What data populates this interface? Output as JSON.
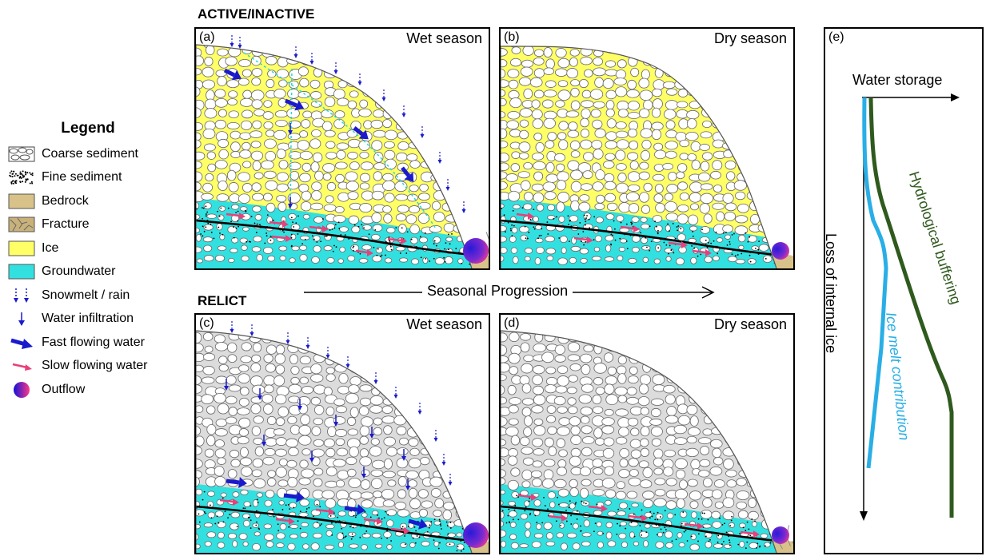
{
  "sections": {
    "active_title": "ACTIVE/INACTIVE",
    "relict_title": "RELICT"
  },
  "panels": [
    {
      "tag": "(a)",
      "season": "Wet season"
    },
    {
      "tag": "(b)",
      "season": "Dry season"
    },
    {
      "tag": "(c)",
      "season": "Wet season"
    },
    {
      "tag": "(d)",
      "season": "Dry season"
    }
  ],
  "progression_label": "Seasonal Progression",
  "legend": {
    "title": "Legend",
    "items": [
      {
        "label": "Coarse sediment",
        "icon": "coarse-sediment-swatch"
      },
      {
        "label": "Fine sediment",
        "icon": "fine-sediment-swatch"
      },
      {
        "label": "Bedrock",
        "icon": "bedrock-swatch",
        "color": "#d8c28a"
      },
      {
        "label": "Fracture",
        "icon": "fracture-swatch"
      },
      {
        "label": "Ice",
        "icon": "ice-swatch",
        "color": "#ffff66"
      },
      {
        "label": "Groundwater",
        "icon": "groundwater-swatch",
        "color": "#33e0e0"
      },
      {
        "label": "Snowmelt / rain",
        "icon": "dotted-arrows-icon"
      },
      {
        "label": "Water infiltration",
        "icon": "thin-arrow-icon"
      },
      {
        "label": "Fast flowing water",
        "icon": "blue-arrow-icon",
        "color": "#1a1acc"
      },
      {
        "label": "Slow flowing water",
        "icon": "pink-arrow-icon",
        "color": "#e8407a"
      },
      {
        "label": "Outflow",
        "icon": "outflow-circle-icon"
      }
    ]
  },
  "panel_e": {
    "tag": "(e)",
    "x_axis_label": "Water storage",
    "y_axis_label": "Loss of internal ice",
    "curve_green_label": "Hydrological buffering",
    "curve_blue_label": "Ice melt contribution",
    "green_color": "#2f5a1e",
    "blue_color": "#29aee6"
  }
}
